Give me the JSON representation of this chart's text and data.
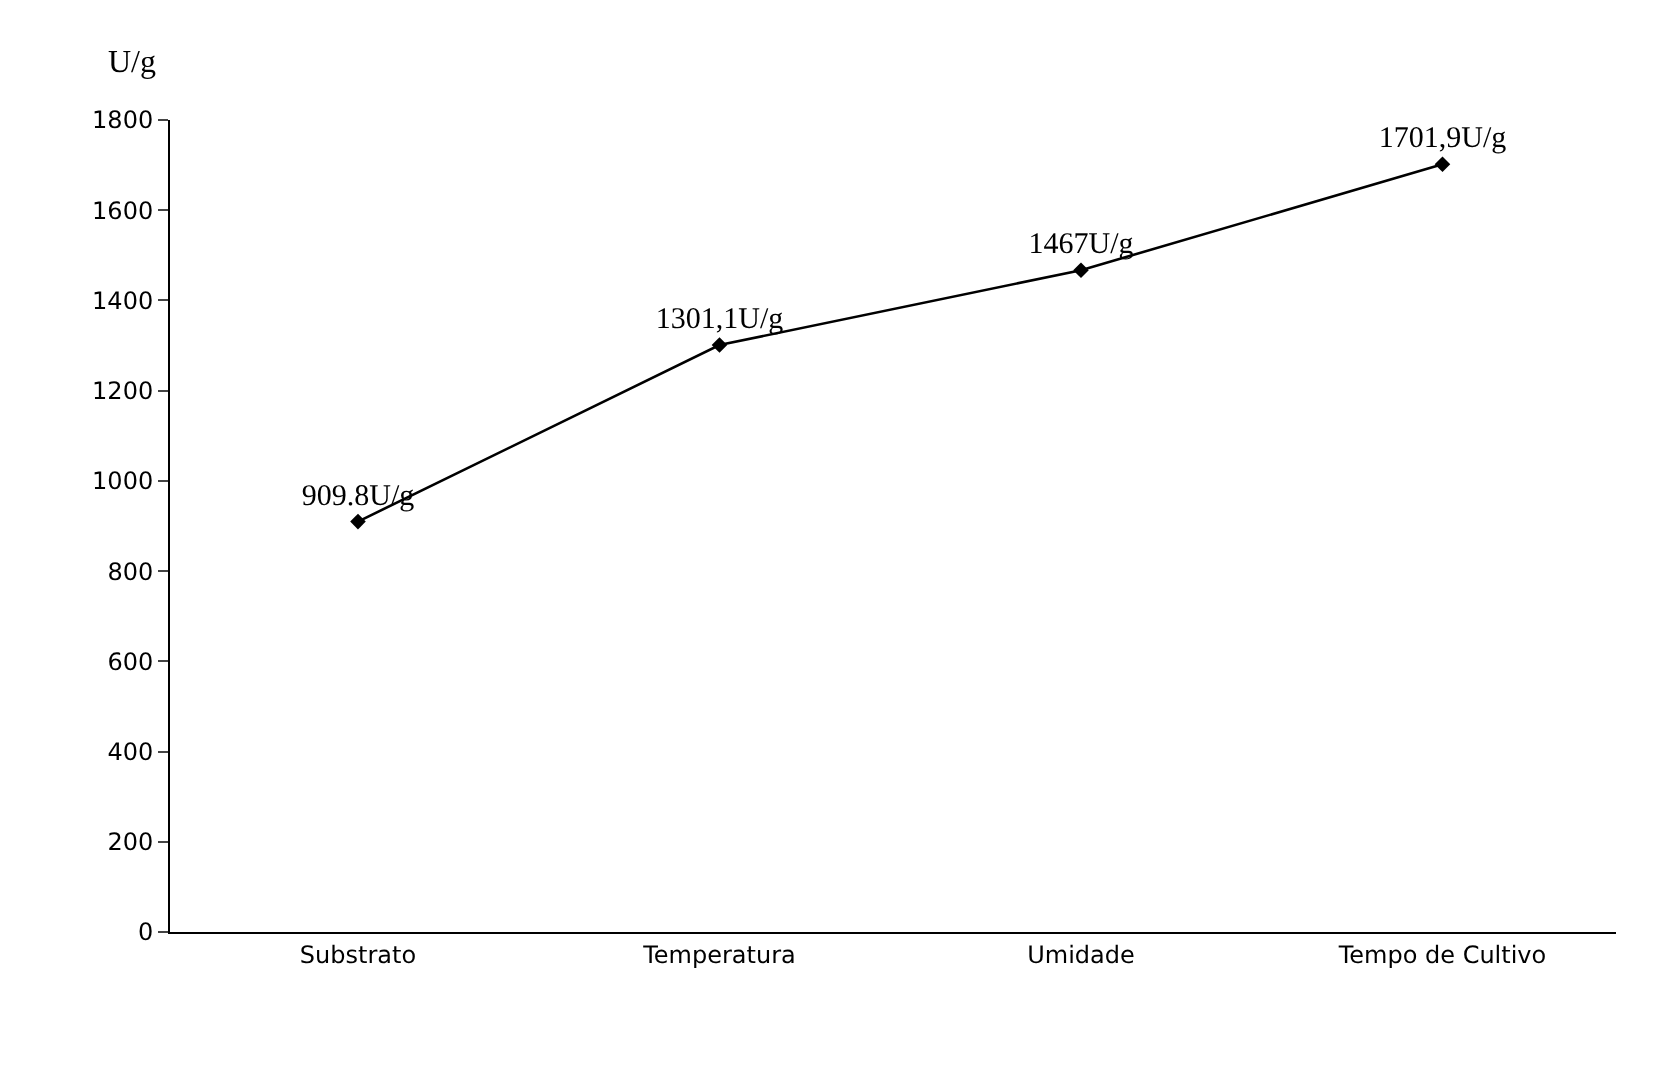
{
  "chart_data": {
    "type": "line",
    "ylabel": "U/g",
    "categories": [
      "Substrato",
      "Temperatura",
      "Umidade",
      "Tempo de Cultivo"
    ],
    "series": [
      {
        "color": "#000000",
        "values": [
          909.8,
          1301.1,
          1467,
          1701.9
        ],
        "value_labels": [
          "909.8U/g",
          "1301,1U/g",
          "1467U/g",
          "1701,9U/g"
        ]
      }
    ],
    "ylim": [
      0,
      1800
    ],
    "yticks": [
      0,
      200,
      400,
      600,
      800,
      1000,
      1200,
      1400,
      1600,
      1800
    ],
    "legend": false,
    "marker": "diamond",
    "line_style": "solid"
  }
}
